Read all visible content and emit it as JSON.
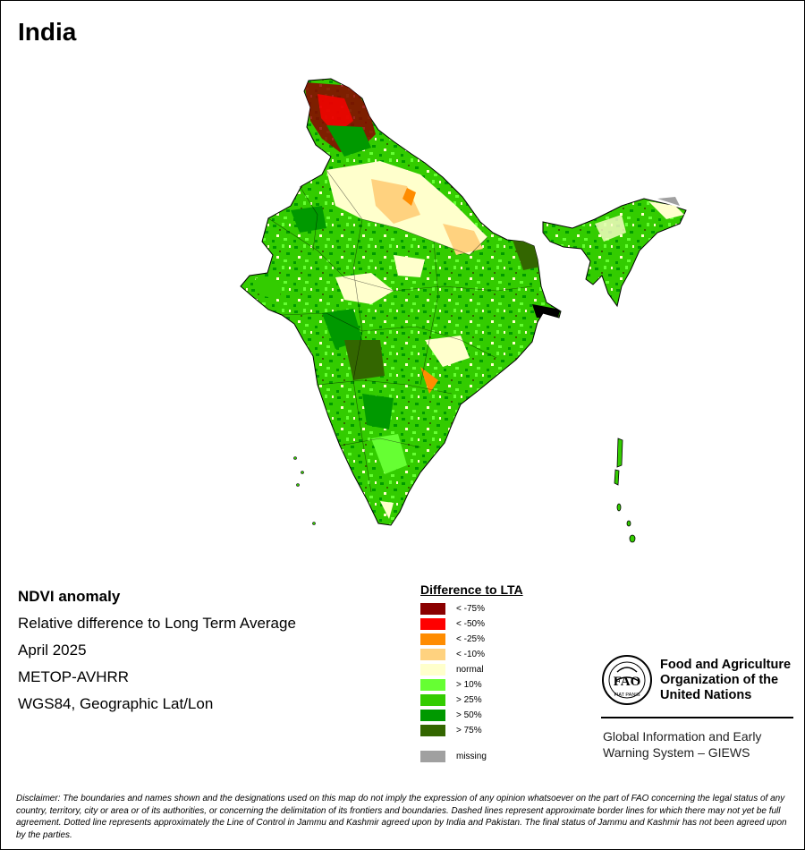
{
  "title": "India",
  "info": {
    "line1": "NDVI anomaly",
    "line2": "Relative difference to Long Term Average",
    "line3": "April 2025",
    "line4": "METOP-AVHRR",
    "line5": "WGS84, Geographic Lat/Lon"
  },
  "legend": {
    "title": "Difference to LTA",
    "items": [
      {
        "label": "< -75%",
        "color": "#8b0000"
      },
      {
        "label": "< -50%",
        "color": "#ff0000"
      },
      {
        "label": "< -25%",
        "color": "#ff8c00"
      },
      {
        "label": "< -10%",
        "color": "#ffd27f"
      },
      {
        "label": "normal",
        "color": "#ffffcc"
      },
      {
        "label": "> 10%",
        "color": "#66ff33"
      },
      {
        "label": "> 25%",
        "color": "#33cc00"
      },
      {
        "label": "> 50%",
        "color": "#009900"
      },
      {
        "label": "> 75%",
        "color": "#336600"
      }
    ],
    "missing": {
      "label": "missing",
      "color": "#a0a0a0"
    }
  },
  "org": {
    "line1": "Food and Agriculture",
    "line2": "Organization of the",
    "line3": "United Nations",
    "logo_text": "FAO",
    "motto": "FIAT PANIS"
  },
  "giews": {
    "line1": "Global Information and Early",
    "line2": "Warning System – GIEWS"
  },
  "disclaimer": "Disclaimer: The boundaries and names shown and the designations used on this map do not imply the expression of any opinion whatsoever on the part of FAO concerning the legal status of any country, territory, city or area or of its authorities, or concerning the delimitation of its frontiers and boundaries. Dashed lines represent approximate border lines for which there may not yet be full agreement. Dotted line represents approximately the Line of Control in Jammu and Kashmir agreed upon by India and Pakistan. The final status of Jammu and Kashmir has not been agreed upon by the parties."
}
